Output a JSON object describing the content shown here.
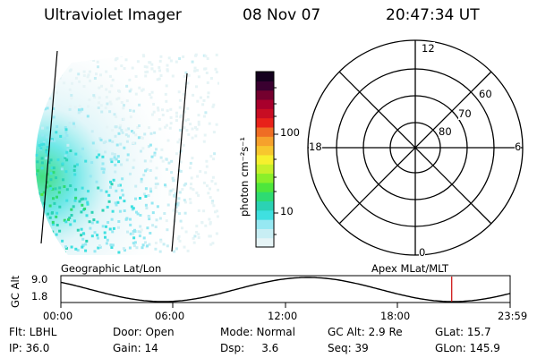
{
  "header": {
    "instrument": "Ultraviolet Imager",
    "date": "08 Nov 07",
    "time": "20:47:34 UT"
  },
  "colorbar": {
    "unit_label": "photon cm⁻²s⁻¹",
    "ticks": [
      "100",
      "10"
    ],
    "colors": [
      "#e6f4f6",
      "#c8eef4",
      "#96e8f2",
      "#3fe0e0",
      "#2bd2b4",
      "#2edb72",
      "#4ee63c",
      "#8aef2a",
      "#c6f02a",
      "#f6f02e",
      "#f7c72e",
      "#f6a12c",
      "#ef6d24",
      "#e8221a",
      "#c80d23",
      "#a8002c",
      "#74002e",
      "#3a0030",
      "#14001e"
    ]
  },
  "polar": {
    "mlt_labels": {
      "top": "12",
      "left": "18",
      "right": "6",
      "bottom": "0"
    },
    "lat_labels": [
      "60",
      "70",
      "80"
    ]
  },
  "timeline": {
    "left_label": "Geographic Lat/Lon",
    "right_label": "Apex MLat/MLT",
    "axis_label": "GC Alt",
    "y_ticks": [
      "9.0",
      "1.8"
    ],
    "x_ticks": [
      "00:00",
      "06:00",
      "12:00",
      "18:00",
      "23:59"
    ],
    "current_time_fraction": 0.87
  },
  "info": {
    "row1": {
      "filter": "Flt: LBHL",
      "door": "Door: Open",
      "mode": "Mode: Normal",
      "gcalt": "GC Alt: 2.9 Re",
      "glat": "GLat: 15.7"
    },
    "row2": {
      "ip": "IP: 36.0",
      "gain": "Gain: 14",
      "dsp": "Dsp:     3.6",
      "seq": "Seq: 39",
      "glon": "GLon: 145.9"
    }
  }
}
